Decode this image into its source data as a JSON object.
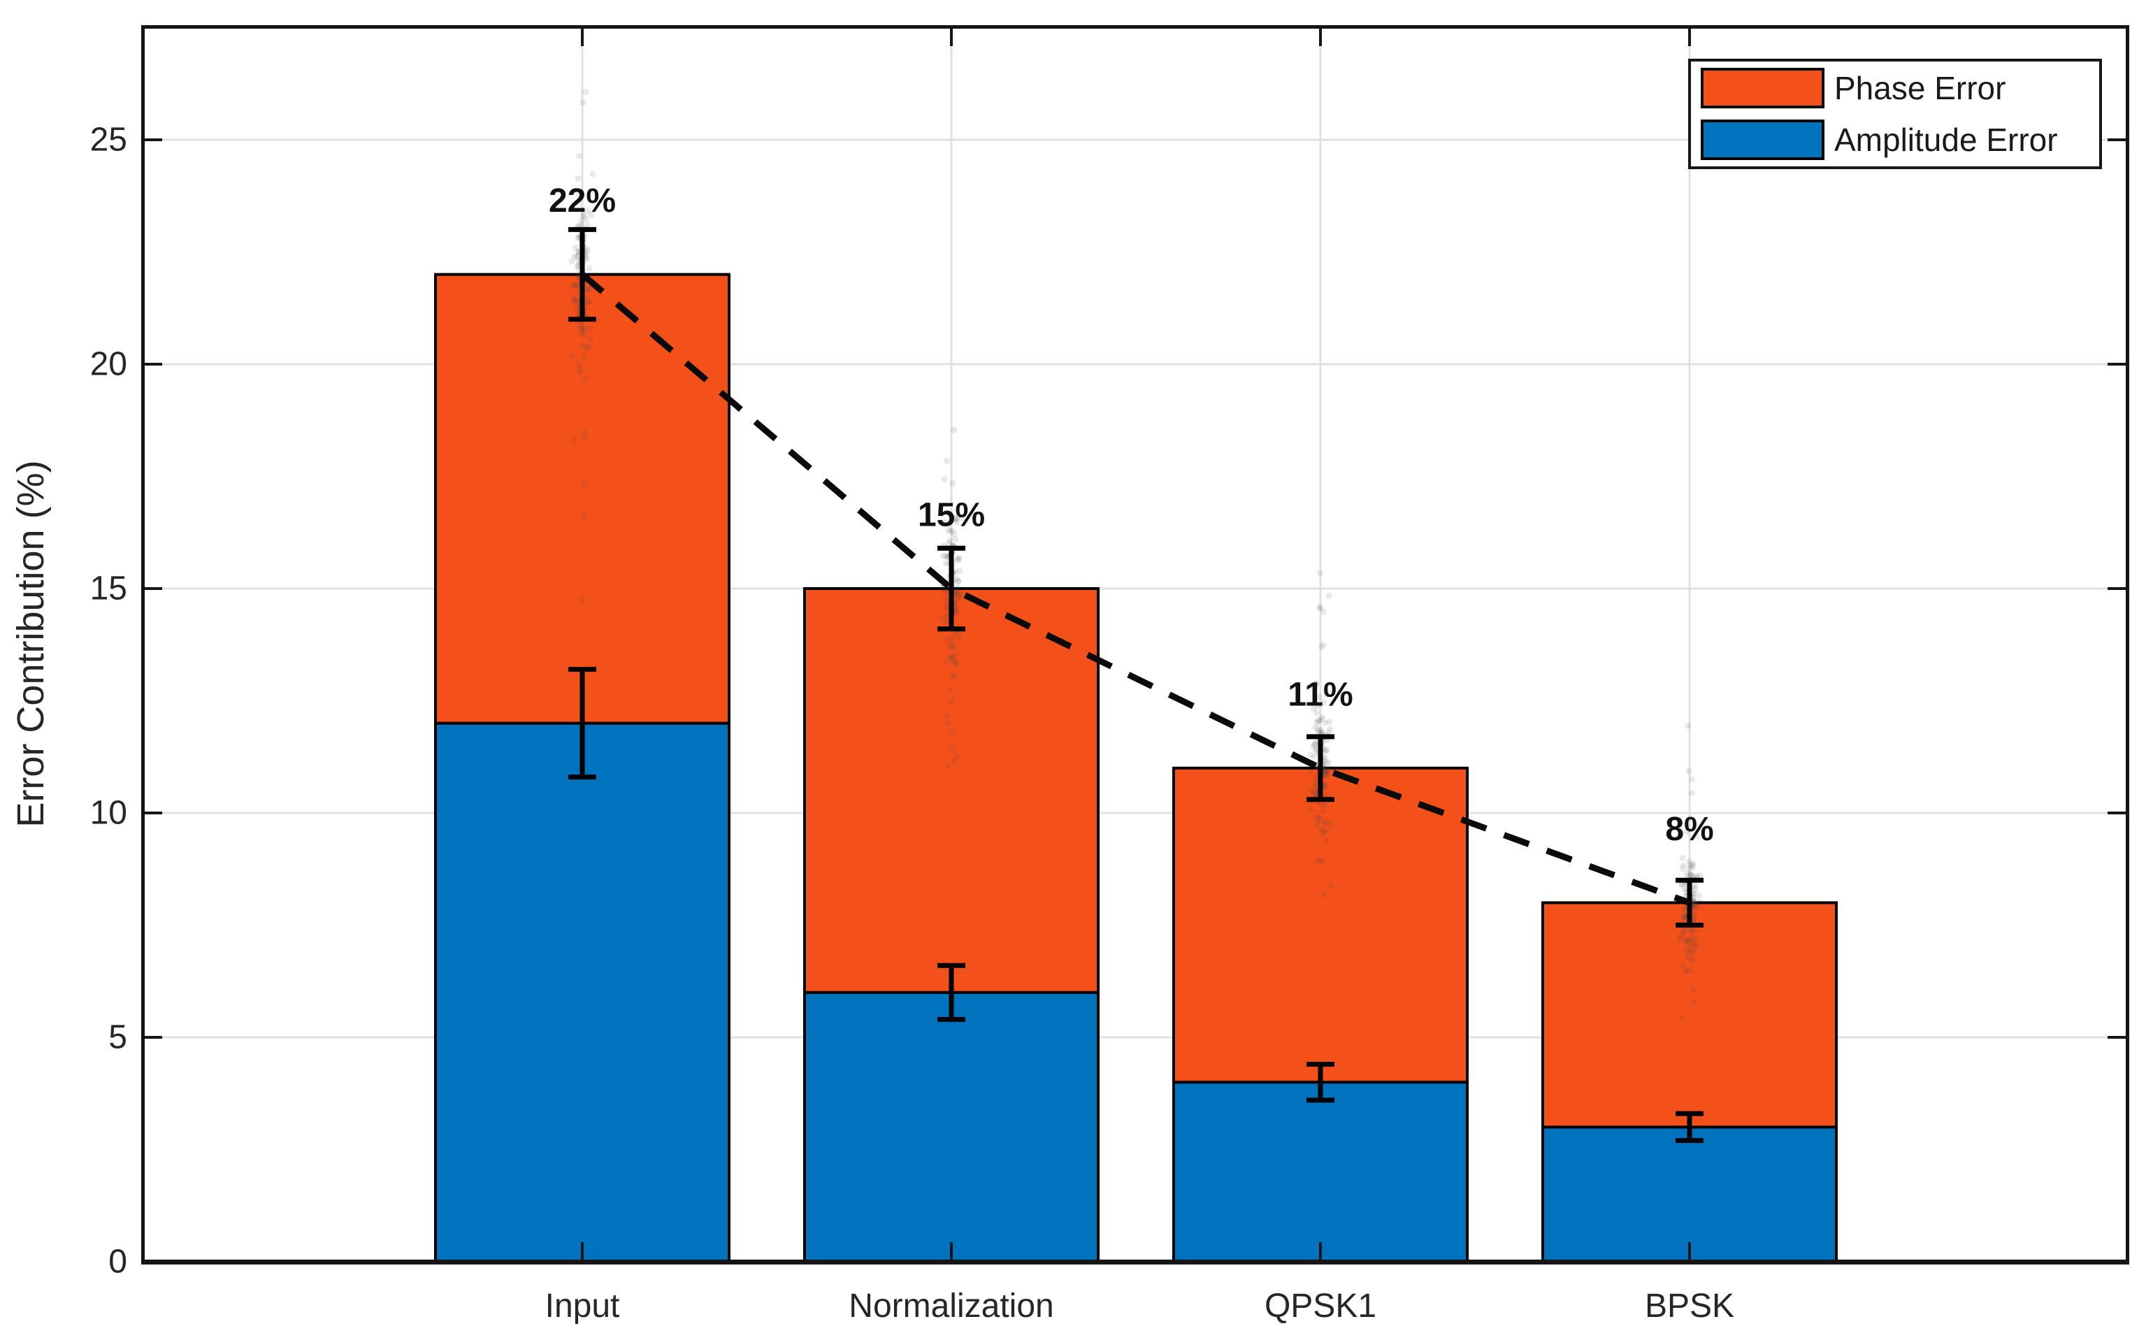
{
  "figure": {
    "background": "#ffffff",
    "accent_colors": {
      "phase_orange": "#f4501a",
      "amplitude_blue": "#0073be"
    }
  },
  "axes": {
    "ylabel": "Error Contribution (%)",
    "yticks": [
      0,
      5,
      10,
      15,
      20,
      25
    ],
    "ylim": [
      0,
      27.5
    ],
    "grid": "on",
    "grid_color": "#e0e0e0",
    "spine_color": "#151515",
    "tick_label_color": "#262626"
  },
  "legend": {
    "position": "northeast",
    "border_color": "#151515",
    "background": "#ffffff",
    "entries": [
      {
        "label": "Phase Error",
        "color": "#f4501a"
      },
      {
        "label": "Amplitude Error",
        "color": "#0073be"
      }
    ]
  },
  "chart_data": {
    "type": "bar",
    "stacked": true,
    "title": "",
    "xlabel": "",
    "ylabel": "Error Contribution (%)",
    "categories": [
      "Input",
      "Normalization",
      "QPSK1",
      "BPSK"
    ],
    "series": [
      {
        "name": "Amplitude Error",
        "color": "#0073be",
        "values": [
          12,
          6,
          4,
          3
        ],
        "errors": [
          1.2,
          0.6,
          0.4,
          0.3
        ]
      },
      {
        "name": "Phase Error",
        "color": "#f4501a",
        "values": [
          10,
          9,
          7,
          5
        ]
      }
    ],
    "totals": {
      "values": [
        22,
        15,
        11,
        8
      ],
      "labels": [
        "22%",
        "15%",
        "11%",
        "8%"
      ],
      "errors": [
        1.0,
        0.9,
        0.7,
        0.5
      ]
    },
    "trend_line": {
      "style": "dashed",
      "color": "#0a0a0a",
      "through_totals": [
        22,
        15,
        11,
        8
      ]
    },
    "scatter_overlay": {
      "color": "#4a4a4a",
      "opacity": 0.12,
      "means": [
        22,
        15,
        11,
        8
      ],
      "spread": [
        1.7,
        1.4,
        1.1,
        0.95
      ]
    },
    "error_bar_color": "#000000",
    "bar_edge_color": "#000000"
  }
}
